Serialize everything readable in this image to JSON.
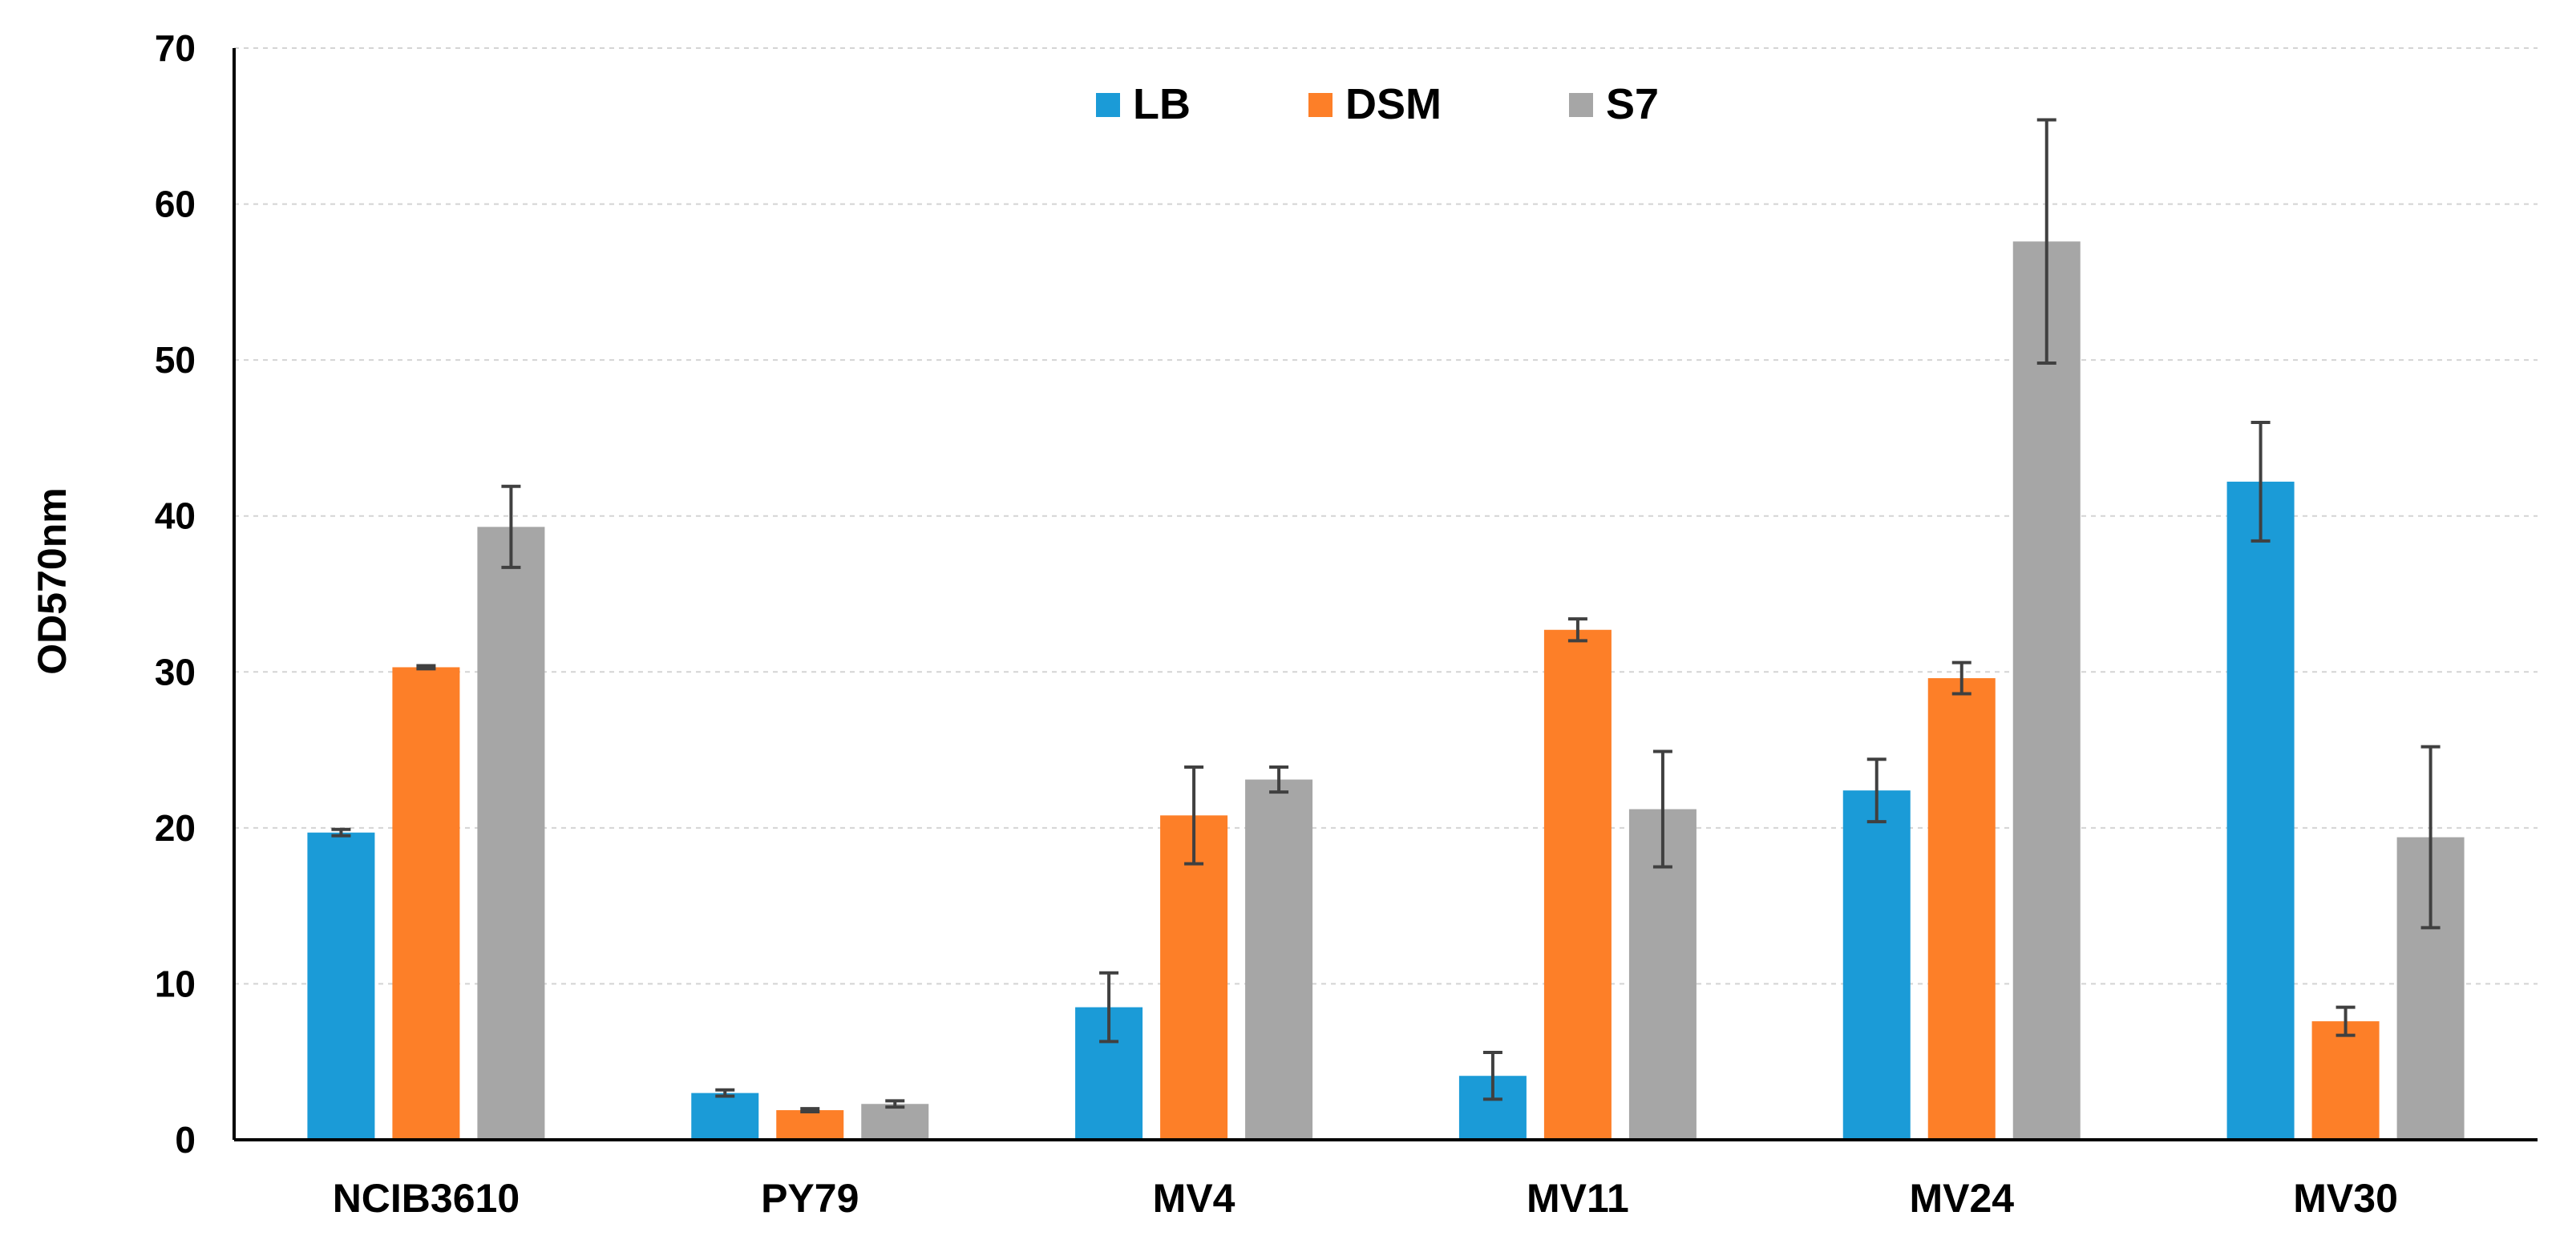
{
  "chart_data": {
    "type": "bar",
    "title": "",
    "xlabel": "",
    "ylabel": "OD570nm",
    "ylim": [
      0,
      70
    ],
    "yticks": [
      0,
      10,
      20,
      30,
      40,
      50,
      60,
      70
    ],
    "grid": true,
    "legend_position": "top-center",
    "categories": [
      "NCIB3610",
      "PY79",
      "MV4",
      "MV11",
      "MV24",
      "MV30"
    ],
    "series": [
      {
        "name": "LB",
        "color": "#1b9bd7",
        "values": [
          19.7,
          3.0,
          8.5,
          4.1,
          22.4,
          42.2
        ],
        "errors": [
          0.2,
          0.2,
          2.2,
          1.5,
          2.0,
          3.8
        ]
      },
      {
        "name": "DSM",
        "color": "#fd7f28",
        "values": [
          30.3,
          1.9,
          20.8,
          32.7,
          29.6,
          7.6
        ],
        "errors": [
          0.1,
          0.1,
          3.1,
          0.7,
          1.0,
          0.9
        ]
      },
      {
        "name": "S7",
        "color": "#a6a6a6",
        "values": [
          39.3,
          2.3,
          23.1,
          21.2,
          57.6,
          19.4
        ],
        "errors": [
          2.6,
          0.2,
          0.8,
          3.7,
          7.8,
          5.8
        ]
      }
    ]
  }
}
